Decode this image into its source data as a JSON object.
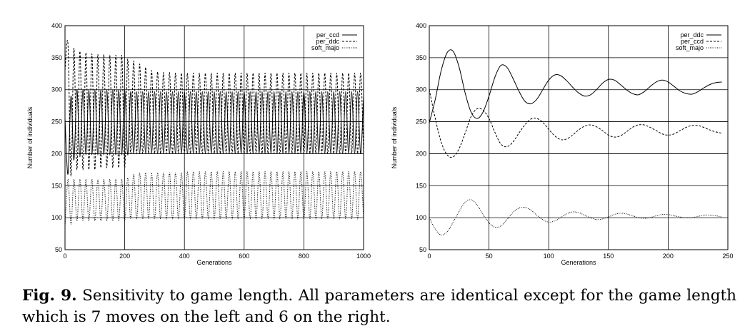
{
  "chart_data": [
    {
      "type": "line",
      "title": "",
      "xlabel": "Generations",
      "ylabel": "Number of individuals",
      "xlim": [
        0,
        1000
      ],
      "ylim": [
        50,
        400
      ],
      "xticks": [
        0,
        200,
        400,
        600,
        800,
        1000
      ],
      "yticks": [
        50,
        100,
        150,
        200,
        250,
        300,
        350,
        400
      ],
      "grid": true,
      "legend_position": "top-right",
      "series": [
        {
          "name": "per_ccd",
          "style": "solid",
          "x": [
            0,
            10,
            20,
            30,
            40,
            50,
            60,
            70,
            80,
            90,
            100,
            110,
            120,
            130,
            140,
            150,
            160,
            170,
            180,
            190,
            200,
            210,
            220,
            230,
            240,
            250,
            260,
            270,
            280,
            290,
            300,
            310,
            320,
            330,
            340,
            350,
            360,
            370,
            380,
            390,
            400,
            410,
            420,
            430,
            440,
            450,
            460,
            470,
            480,
            490,
            500,
            510,
            520,
            530,
            540,
            550,
            560,
            570,
            580,
            590,
            600,
            610,
            620,
            630,
            640,
            650,
            660,
            670,
            680,
            690,
            700,
            710,
            720,
            730,
            740,
            750,
            760,
            770,
            780,
            790,
            800,
            810,
            820,
            830,
            840,
            850,
            860,
            870,
            880,
            890,
            900,
            910,
            920,
            930,
            940,
            950,
            960,
            970,
            980,
            990,
            1000
          ],
          "y": [
            255,
            168,
            290,
            190,
            300,
            195,
            300,
            198,
            300,
            198,
            300,
            198,
            300,
            198,
            300,
            198,
            300,
            198,
            300,
            198,
            300,
            198,
            297,
            200,
            297,
            200,
            297,
            200,
            297,
            200,
            297,
            200,
            297,
            200,
            297,
            200,
            297,
            200,
            297,
            200,
            297,
            200,
            297,
            200,
            297,
            200,
            297,
            200,
            297,
            200,
            297,
            200,
            297,
            200,
            297,
            200,
            297,
            200,
            297,
            200,
            297,
            200,
            297,
            200,
            297,
            200,
            297,
            200,
            297,
            200,
            297,
            200,
            297,
            200,
            297,
            200,
            297,
            200,
            297,
            200,
            297,
            200,
            297,
            200,
            297,
            200,
            297,
            200,
            297,
            200,
            297,
            200,
            297,
            200,
            297,
            200,
            297,
            200,
            297,
            200,
            290
          ]
        },
        {
          "name": "per_ddc",
          "style": "dashed",
          "x": [
            0,
            10,
            20,
            30,
            40,
            50,
            60,
            70,
            80,
            90,
            100,
            110,
            120,
            130,
            140,
            150,
            160,
            170,
            180,
            190,
            200,
            210,
            220,
            230,
            240,
            250,
            260,
            270,
            280,
            290,
            300,
            310,
            320,
            330,
            340,
            350,
            360,
            370,
            380,
            390,
            400,
            410,
            420,
            430,
            440,
            450,
            460,
            470,
            480,
            490,
            500,
            510,
            520,
            530,
            540,
            550,
            560,
            570,
            580,
            590,
            600,
            610,
            620,
            630,
            640,
            650,
            660,
            670,
            680,
            690,
            700,
            710,
            720,
            730,
            740,
            750,
            760,
            770,
            780,
            790,
            800,
            810,
            820,
            830,
            840,
            850,
            860,
            870,
            880,
            890,
            900,
            910,
            920,
            930,
            940,
            950,
            960,
            970,
            980,
            990,
            1000
          ],
          "y": [
            330,
            370,
            165,
            365,
            175,
            360,
            175,
            358,
            175,
            356,
            175,
            355,
            178,
            355,
            178,
            354,
            178,
            354,
            178,
            354,
            178,
            348,
            200,
            345,
            200,
            340,
            200,
            335,
            200,
            330,
            200,
            328,
            200,
            327,
            200,
            327,
            200,
            326,
            200,
            326,
            200,
            326,
            200,
            326,
            200,
            326,
            200,
            326,
            200,
            326,
            200,
            326,
            200,
            326,
            200,
            326,
            200,
            326,
            200,
            326,
            200,
            326,
            200,
            326,
            200,
            326,
            200,
            326,
            200,
            326,
            200,
            326,
            200,
            326,
            200,
            326,
            200,
            326,
            200,
            326,
            200,
            326,
            200,
            326,
            200,
            326,
            200,
            326,
            200,
            326,
            200,
            326,
            200,
            326,
            200,
            326,
            200,
            326,
            200,
            326,
            200
          ]
        },
        {
          "name": "soft_majo",
          "style": "dotted",
          "x": [
            0,
            10,
            20,
            30,
            40,
            50,
            60,
            70,
            80,
            90,
            100,
            110,
            120,
            130,
            140,
            150,
            160,
            170,
            180,
            190,
            200,
            210,
            220,
            230,
            240,
            250,
            260,
            270,
            280,
            290,
            300,
            310,
            320,
            330,
            340,
            350,
            360,
            370,
            380,
            390,
            400,
            410,
            420,
            430,
            440,
            450,
            460,
            470,
            480,
            490,
            500,
            510,
            520,
            530,
            540,
            550,
            560,
            570,
            580,
            590,
            600,
            610,
            620,
            630,
            640,
            650,
            660,
            670,
            680,
            690,
            700,
            710,
            720,
            730,
            740,
            750,
            760,
            770,
            780,
            790,
            800,
            810,
            820,
            830,
            840,
            850,
            860,
            870,
            880,
            890,
            900,
            910,
            920,
            930,
            940,
            950,
            960,
            970,
            980,
            990,
            1000
          ],
          "y": [
            85,
            160,
            90,
            160,
            95,
            160,
            95,
            160,
            95,
            160,
            95,
            160,
            95,
            160,
            95,
            160,
            95,
            160,
            95,
            160,
            95,
            162,
            98,
            168,
            98,
            170,
            98,
            170,
            98,
            170,
            98,
            170,
            98,
            170,
            98,
            170,
            98,
            170,
            98,
            170,
            98,
            172,
            98,
            172,
            98,
            172,
            98,
            172,
            98,
            172,
            98,
            172,
            98,
            172,
            98,
            172,
            98,
            172,
            98,
            172,
            98,
            172,
            98,
            172,
            98,
            172,
            98,
            172,
            98,
            172,
            98,
            172,
            98,
            172,
            98,
            172,
            98,
            172,
            98,
            172,
            98,
            172,
            98,
            172,
            98,
            172,
            98,
            172,
            98,
            172,
            98,
            172,
            98,
            172,
            98,
            172,
            98,
            172,
            98,
            172,
            98
          ]
        }
      ]
    },
    {
      "type": "line",
      "title": "",
      "xlabel": "Generations",
      "ylabel": "Number of individuals",
      "xlim": [
        0,
        250
      ],
      "ylim": [
        50,
        400
      ],
      "xticks": [
        0,
        50,
        100,
        150,
        200,
        250
      ],
      "yticks": [
        50,
        100,
        150,
        200,
        250,
        300,
        350,
        400
      ],
      "grid": true,
      "legend_position": "top-right",
      "series": [
        {
          "name": "per_ddc",
          "style": "solid",
          "x": [
            0,
            5,
            10,
            15,
            20,
            25,
            30,
            35,
            40,
            45,
            50,
            55,
            60,
            65,
            70,
            75,
            80,
            85,
            90,
            95,
            100,
            105,
            110,
            115,
            120,
            125,
            130,
            135,
            140,
            145,
            150,
            155,
            160,
            165,
            170,
            175,
            180,
            185,
            190,
            195,
            200,
            205,
            210,
            215,
            220,
            225,
            230,
            235,
            240,
            245
          ],
          "y": [
            248,
            285,
            330,
            358,
            360,
            335,
            295,
            265,
            255,
            265,
            290,
            320,
            338,
            335,
            318,
            298,
            282,
            278,
            285,
            300,
            315,
            323,
            322,
            314,
            304,
            295,
            290,
            292,
            300,
            310,
            316,
            315,
            308,
            300,
            294,
            292,
            297,
            305,
            312,
            315,
            312,
            305,
            298,
            294,
            293,
            297,
            303,
            308,
            311,
            312
          ]
        },
        {
          "name": "per_ccd",
          "style": "dashed",
          "x": [
            0,
            5,
            10,
            15,
            20,
            25,
            30,
            35,
            40,
            45,
            50,
            55,
            60,
            65,
            70,
            75,
            80,
            85,
            90,
            95,
            100,
            105,
            110,
            115,
            120,
            125,
            130,
            135,
            140,
            145,
            150,
            155,
            160,
            165,
            170,
            175,
            180,
            185,
            190,
            195,
            200,
            205,
            210,
            215,
            220,
            225,
            230,
            235,
            240,
            245
          ],
          "y": [
            300,
            255,
            218,
            198,
            195,
            208,
            232,
            258,
            270,
            268,
            255,
            233,
            215,
            211,
            218,
            232,
            245,
            254,
            255,
            249,
            238,
            228,
            222,
            223,
            229,
            237,
            243,
            245,
            242,
            236,
            229,
            226,
            228,
            234,
            241,
            245,
            245,
            241,
            236,
            231,
            229,
            231,
            236,
            241,
            244,
            244,
            241,
            237,
            234,
            232
          ]
        },
        {
          "name": "soft_majo",
          "style": "dotted",
          "x": [
            0,
            5,
            10,
            15,
            20,
            25,
            30,
            35,
            40,
            45,
            50,
            55,
            60,
            65,
            70,
            75,
            80,
            85,
            90,
            95,
            100,
            105,
            110,
            115,
            120,
            125,
            130,
            135,
            140,
            145,
            150,
            155,
            160,
            165,
            170,
            175,
            180,
            185,
            190,
            195,
            200,
            205,
            210,
            215,
            220,
            225,
            230,
            235,
            240,
            245
          ],
          "y": [
            100,
            82,
            73,
            78,
            93,
            110,
            124,
            128,
            120,
            105,
            92,
            85,
            87,
            97,
            108,
            115,
            116,
            112,
            104,
            97,
            93,
            95,
            100,
            106,
            109,
            108,
            104,
            100,
            97,
            98,
            101,
            105,
            107,
            106,
            103,
            100,
            99,
            100,
            103,
            105,
            105,
            103,
            101,
            100,
            100,
            102,
            104,
            104,
            103,
            101
          ]
        }
      ]
    }
  ],
  "caption": {
    "label": "Fig. 9.",
    "text": " Sensitivity to game length. All parameters are identical except for the game length which is 7 moves on the left and 6 on the right."
  }
}
